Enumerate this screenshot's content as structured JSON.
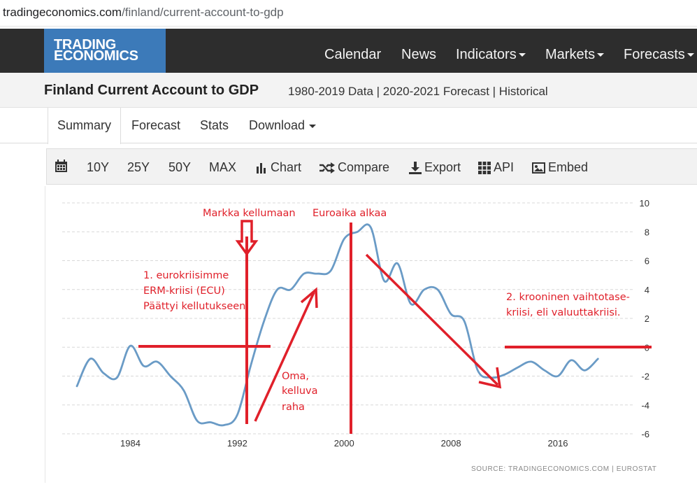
{
  "browser": {
    "url_host": "tradingeconomics.com",
    "url_path": "/finland/current-account-to-gdp"
  },
  "nav": {
    "logo_line1": "TRADING",
    "logo_line2": "ECONOMICS",
    "items": [
      "Calendar",
      "News",
      "Indicators",
      "Markets",
      "Forecasts"
    ]
  },
  "page": {
    "title": "Finland Current Account to GDP",
    "subtitle": "1980-2019 Data | 2020-2021 Forecast | Historical"
  },
  "tabs": [
    "Summary",
    "Forecast",
    "Stats",
    "Download"
  ],
  "toolbar": {
    "icons": [
      "calendar-icon",
      "bar-chart-icon",
      "shuffle-icon",
      "download-icon",
      "grid-icon",
      "image-icon"
    ],
    "ranges": [
      "10Y",
      "25Y",
      "50Y",
      "MAX"
    ],
    "chart": "Chart",
    "compare": "Compare",
    "export": "Export",
    "api": "API",
    "embed": "Embed"
  },
  "colors": {
    "accent": "#3c7ab9",
    "line": "#6a9bc6",
    "annotation": "#e0202a",
    "navbar": "#2d2d2d"
  },
  "chart_data": {
    "type": "line",
    "x_tick_labels": [
      "1984",
      "1992",
      "2000",
      "2008",
      "2016"
    ],
    "y_tick_labels": [
      "10",
      "8",
      "6",
      "4",
      "2",
      "0",
      "-2",
      "-4",
      "-6"
    ],
    "xlim": [
      1978.9,
      2021.6
    ],
    "ylim": [
      -6,
      10
    ],
    "grid": true,
    "y_axis_position": "right",
    "source": "SOURCE:  TRADINGECONOMICS.COM  |  EUROSTAT",
    "series": [
      {
        "x": [
          1980.0,
          1981.0,
          1982.0,
          1983.0,
          1984.0,
          1985.0,
          1986.0,
          1987.0,
          1988.0,
          1989.0,
          1990.0,
          1991.0,
          1992.0,
          1993.0,
          1994.0,
          1995.0,
          1996.0,
          1997.0,
          1998.0,
          1999.0,
          2000.0,
          2001.0,
          2002.0,
          2003.0,
          2004.0,
          2005.0,
          2006.0,
          2007.0,
          2008.0,
          2009.0,
          2010.0,
          2011.0,
          2012.0,
          2013.0,
          2014.0,
          2015.0,
          2016.0,
          2017.0,
          2018.0,
          2019.0
        ],
        "values": [
          -2.7,
          -0.8,
          -1.8,
          -2.1,
          0.1,
          -1.3,
          -1.0,
          -2.0,
          -3.0,
          -5.1,
          -5.2,
          -5.4,
          -4.7,
          -1.3,
          1.8,
          4.0,
          4.0,
          5.1,
          5.1,
          5.3,
          7.5,
          8.0,
          8.3,
          4.6,
          5.8,
          3.0,
          4.0,
          4.0,
          2.3,
          1.8,
          -1.6,
          -2.1,
          -1.9,
          -1.4,
          -1.0,
          -1.6,
          -2.0,
          -0.9,
          -1.6,
          -0.8
        ]
      }
    ]
  },
  "annotations": {
    "markka": "Markka kellumaan",
    "euro": "Euroaika alkaa",
    "crisis1_line1": "1. eurokriisimme",
    "crisis1_line2": "ERM-kriisi (ECU)",
    "crisis1_line3": "Päättyi kellutukseen",
    "oma_line1": "Oma,",
    "oma_line2": "kelluva",
    "oma_line3": "raha",
    "crisis2_line1": "2. krooninen vaihtotase-",
    "crisis2_line2": "kriisi, eli valuuttakriisi."
  }
}
